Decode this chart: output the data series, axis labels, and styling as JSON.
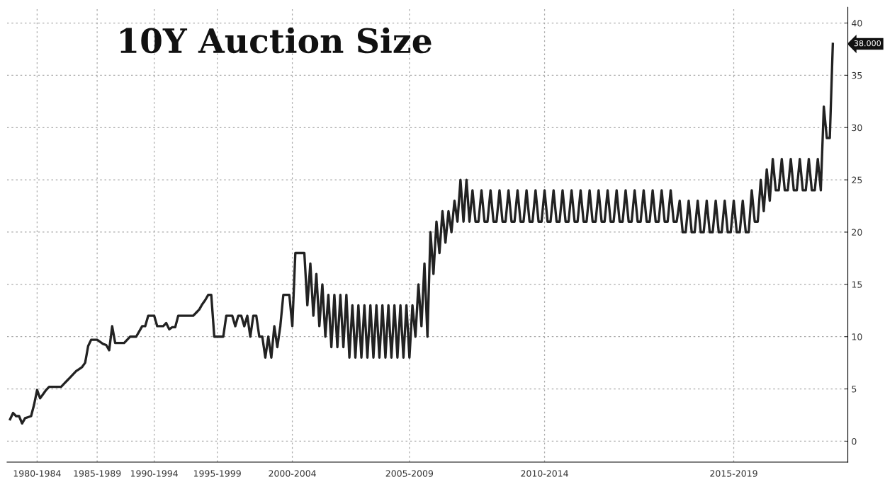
{
  "chart_data": {
    "type": "line",
    "title": "10Y Auction Size",
    "categories": [
      null,
      null,
      null,
      null,
      null,
      null,
      null,
      null,
      null,
      "1980-1984",
      null,
      null,
      null,
      null,
      null,
      null,
      null,
      null,
      null,
      null,
      null,
      null,
      null,
      null,
      null,
      null,
      null,
      null,
      null,
      "1985-1989",
      null,
      null,
      null,
      null,
      null,
      null,
      null,
      null,
      null,
      null,
      null,
      null,
      null,
      null,
      null,
      null,
      null,
      null,
      "1990-1994",
      null,
      null,
      null,
      null,
      null,
      null,
      null,
      null,
      null,
      null,
      null,
      null,
      null,
      null,
      null,
      null,
      null,
      null,
      null,
      null,
      "1995-1999",
      null,
      null,
      null,
      null,
      null,
      null,
      null,
      null,
      null,
      null,
      null,
      null,
      null,
      null,
      null,
      null,
      null,
      null,
      null,
      null,
      null,
      null,
      null,
      null,
      "2000-2004",
      null,
      null,
      null,
      null,
      null,
      null,
      null,
      null,
      null,
      null,
      null,
      null,
      null,
      null,
      null,
      null,
      null,
      null,
      null,
      null,
      null,
      null,
      null,
      null,
      null,
      null,
      null,
      null,
      null,
      null,
      null,
      null,
      null,
      null,
      null,
      null,
      null,
      null,
      "2005-2009",
      null,
      null,
      null,
      null,
      null,
      null,
      null,
      null,
      null,
      null,
      null,
      null,
      null,
      null,
      null,
      null,
      null,
      null,
      null,
      null,
      null,
      null,
      null,
      null,
      null,
      null,
      null,
      null,
      null,
      null,
      null,
      null,
      null,
      null,
      null,
      null,
      null,
      null,
      null,
      null,
      null,
      null,
      null,
      null,
      "2010-2014",
      null,
      null,
      null,
      null,
      null,
      null,
      null,
      null,
      null,
      null,
      null,
      null,
      null,
      null,
      null,
      null,
      null,
      null,
      null,
      null,
      null,
      null,
      null,
      null,
      null,
      null,
      null,
      null,
      null,
      null,
      null,
      null,
      null,
      null,
      null,
      null,
      null,
      null,
      null,
      null,
      null,
      null,
      null,
      null,
      null,
      null,
      null,
      null,
      null,
      null,
      null,
      null,
      null,
      null,
      null,
      null,
      null,
      null,
      null,
      null,
      null,
      null,
      "2015-2019",
      null,
      null,
      null,
      null,
      null,
      null,
      null,
      null,
      null,
      null,
      null,
      null,
      null,
      null,
      null,
      null,
      null,
      null,
      null,
      null,
      null,
      null,
      null,
      null,
      null,
      null,
      null,
      null,
      null,
      null,
      null,
      null,
      null
    ],
    "series": [
      {
        "color": "#222222",
        "values": [
          2.1,
          2.7,
          2.4,
          2.4,
          1.7,
          2.2,
          2.3,
          2.4,
          3.5,
          4.9,
          4.1,
          4.5,
          4.9,
          5.2,
          5.2,
          5.2,
          5.2,
          5.2,
          5.5,
          5.8,
          6.1,
          6.4,
          6.7,
          6.9,
          7.1,
          7.5,
          9.1,
          9.7,
          9.7,
          9.7,
          9.5,
          9.3,
          9.2,
          8.7,
          11,
          9.4,
          9.4,
          9.4,
          9.4,
          9.7,
          10,
          10,
          10,
          10.5,
          11,
          11,
          12,
          12,
          12,
          11,
          11,
          11,
          11.3,
          10.7,
          10.9,
          10.9,
          12,
          12,
          12,
          12,
          12,
          12,
          12.3,
          12.6,
          13.1,
          13.5,
          14,
          14,
          10,
          10,
          10,
          10,
          12,
          12,
          12,
          11,
          12,
          12,
          11,
          12,
          10,
          12,
          12,
          10,
          10,
          8,
          10,
          8,
          11,
          9,
          11,
          14,
          14,
          14,
          11,
          18,
          18,
          18,
          18,
          13,
          17,
          12,
          16,
          11,
          15,
          10,
          14,
          9,
          14,
          9,
          14,
          9,
          14,
          8,
          13,
          8,
          13,
          8,
          13,
          8,
          13,
          8,
          13,
          8,
          13,
          8,
          13,
          8,
          13,
          8,
          13,
          8,
          13,
          8,
          13,
          10,
          15,
          11,
          17,
          10,
          20,
          16,
          21,
          18,
          22,
          19,
          22,
          20,
          23,
          21,
          25,
          21,
          25,
          21,
          24,
          21,
          21,
          24,
          21,
          21,
          24,
          21,
          21,
          24,
          21,
          21,
          24,
          21,
          21,
          24,
          21,
          21,
          24,
          21,
          21,
          24,
          21,
          21,
          24,
          21,
          21,
          24,
          21,
          21,
          24,
          21,
          21,
          24,
          21,
          21,
          24,
          21,
          21,
          24,
          21,
          21,
          24,
          21,
          21,
          24,
          21,
          21,
          24,
          21,
          21,
          24,
          21,
          21,
          24,
          21,
          21,
          24,
          21,
          21,
          24,
          21,
          21,
          24,
          21,
          21,
          24,
          21,
          21,
          23,
          20,
          20,
          23,
          20,
          20,
          23,
          20,
          20,
          23,
          20,
          20,
          23,
          20,
          20,
          23,
          20,
          20,
          23,
          20,
          20,
          23,
          20,
          20,
          24,
          21,
          21,
          25,
          22,
          26,
          23,
          27,
          24,
          24,
          27,
          24,
          24,
          27,
          24,
          24,
          27,
          24,
          24,
          27,
          24,
          24,
          27,
          24,
          32,
          29,
          29,
          38
        ]
      }
    ],
    "ylim": [
      -2,
      41.5
    ],
    "yticks": [
      0,
      5,
      10,
      15,
      20,
      25,
      30,
      35,
      40
    ],
    "annotations": [
      "38.000"
    ],
    "grid": true,
    "line_style": "solid",
    "marker": "none"
  }
}
